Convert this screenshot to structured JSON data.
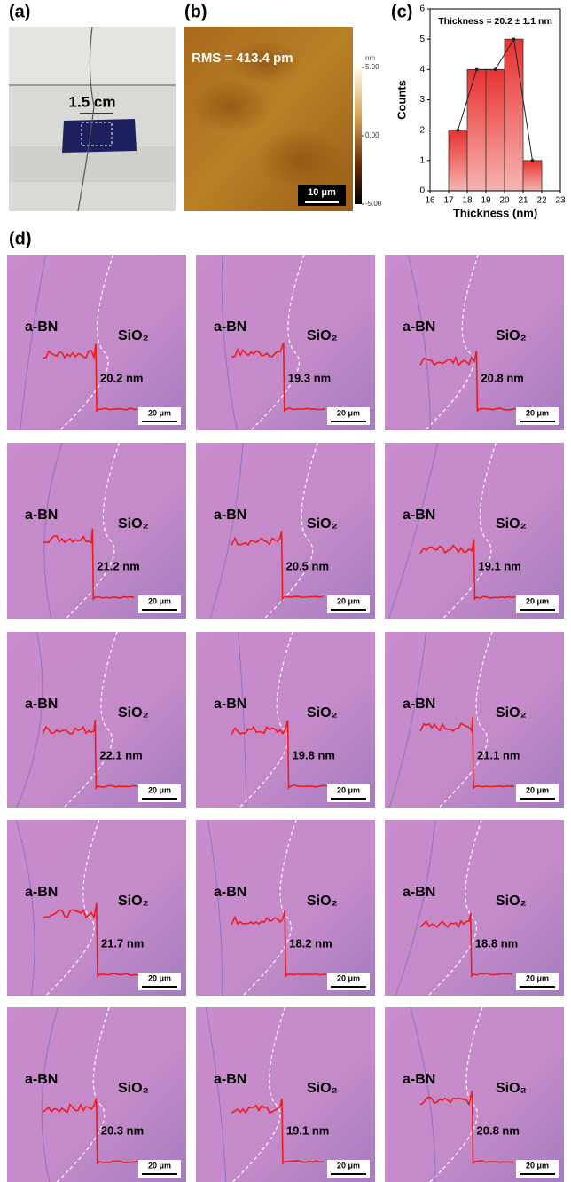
{
  "panels": {
    "a": {
      "label": "(a)",
      "scale_text": "1.5 cm"
    },
    "b": {
      "label": "(b)",
      "rms": "RMS = 413.4 pm",
      "colorbar_unit": "nm",
      "colorbar_ticks": [
        {
          "value": 5,
          "label": "5.00"
        },
        {
          "value": 0,
          "label": "0.00"
        },
        {
          "value": -5,
          "label": "-5.00"
        }
      ],
      "colorbar_lim": [
        -5,
        5
      ],
      "scale_bar": "10 μm"
    },
    "c": {
      "label": "(c)",
      "type": "histogram",
      "annotation": "Thickness = 20.2 ± 1.1 nm",
      "x_label": "Thickness (nm)",
      "y_label": "Counts",
      "bins": [
        17,
        18,
        19,
        20,
        21,
        22
      ],
      "values": [
        2,
        4,
        4,
        5,
        1
      ],
      "xlim": [
        16,
        23
      ],
      "xticks": [
        16,
        17,
        18,
        19,
        20,
        21,
        22,
        23
      ],
      "ylim": [
        0,
        6
      ],
      "yticks": [
        0,
        1,
        2,
        3,
        4,
        5,
        6
      ],
      "color": "#e8322f"
    },
    "d": {
      "label": "(d)",
      "tiles": [
        {
          "left": "a-BN",
          "right": "SiO₂",
          "thickness": "20.2 nm",
          "scale": "20 μm"
        },
        {
          "left": "a-BN",
          "right": "SiO₂",
          "thickness": "19.3 nm",
          "scale": "20 μm"
        },
        {
          "left": "a-BN",
          "right": "SiO₂",
          "thickness": "20.8 nm",
          "scale": "20 μm"
        },
        {
          "left": "a-BN",
          "right": "SiO₂",
          "thickness": "21.2 nm",
          "scale": "20 μm"
        },
        {
          "left": "a-BN",
          "right": "SiO₂",
          "thickness": "20.5 nm",
          "scale": "20 μm"
        },
        {
          "left": "a-BN",
          "right": "SiO₂",
          "thickness": "19.1 nm",
          "scale": "20 μm"
        },
        {
          "left": "a-BN",
          "right": "SiO₂",
          "thickness": "22.1 nm",
          "scale": "20 μm"
        },
        {
          "left": "a-BN",
          "right": "SiO₂",
          "thickness": "19.8 nm",
          "scale": "20 μm"
        },
        {
          "left": "a-BN",
          "right": "SiO₂",
          "thickness": "21.1 nm",
          "scale": "20 μm"
        },
        {
          "left": "a-BN",
          "right": "SiO₂",
          "thickness": "21.7 nm",
          "scale": "20 μm"
        },
        {
          "left": "a-BN",
          "right": "SiO₂",
          "thickness": "18.2 nm",
          "scale": "20 μm"
        },
        {
          "left": "a-BN",
          "right": "SiO₂",
          "thickness": "18.8 nm",
          "scale": "20 μm"
        },
        {
          "left": "a-BN",
          "right": "SiO₂",
          "thickness": "20.3 nm",
          "scale": "20 μm"
        },
        {
          "left": "a-BN",
          "right": "SiO₂",
          "thickness": "19.1 nm",
          "scale": "20 μm"
        },
        {
          "left": "a-BN",
          "right": "SiO₂",
          "thickness": "20.8 nm",
          "scale": "20 μm"
        }
      ]
    }
  }
}
